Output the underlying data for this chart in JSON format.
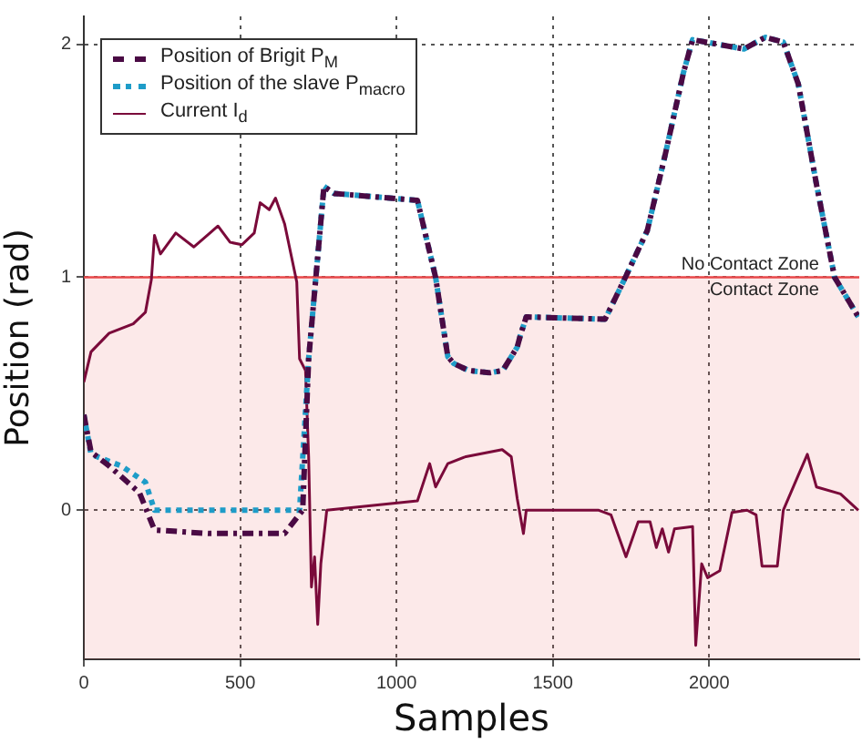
{
  "chart_data": {
    "type": "line",
    "xlabel": "Samples",
    "ylabel": "Position (rad)",
    "xlim": [
      0,
      2480
    ],
    "ylim": [
      -0.64,
      2.12
    ],
    "xticks": [
      0,
      500,
      1000,
      1500,
      2000
    ],
    "yticks": [
      0,
      1,
      2
    ],
    "grid": true,
    "legend": "top left",
    "marker": "none",
    "ref_lines": [
      {
        "axis": "y",
        "value": 1,
        "label": "No Contact Zone",
        "color": "#e8484a"
      }
    ],
    "bands": [
      {
        "axis": "y",
        "from": -0.64,
        "to": 1,
        "label": "Contact Zone",
        "color": "#e8484a"
      }
    ],
    "series": [
      {
        "name": "Position of Brigit P$_{M}$",
        "color": "#4a0a44",
        "line_style": "dashed",
        "x": [
          0,
          23,
          81,
          178,
          226,
          400,
          642,
          700,
          719,
          768,
          800,
          1067,
          1125,
          1164,
          1183,
          1230,
          1299,
          1340,
          1386,
          1396,
          1415,
          1667,
          1725,
          1802,
          1860,
          1918,
          1947,
          2111,
          2179,
          2237,
          2285,
          2343,
          2401,
          2477
        ],
        "values": [
          0.41,
          0.25,
          0.19,
          0.075,
          -0.085,
          -0.1,
          -0.1,
          0.0,
          0.65,
          1.39,
          1.36,
          1.33,
          1.0,
          0.66,
          0.63,
          0.6,
          0.59,
          0.6,
          0.7,
          0.75,
          0.83,
          0.82,
          0.98,
          1.2,
          1.53,
          1.88,
          2.02,
          1.98,
          2.03,
          2.01,
          1.83,
          1.4,
          1.0,
          0.83
        ]
      },
      {
        "name": "Position of the slave P$_{macro}$",
        "color": "#1e9cc8",
        "line_style": "dotted",
        "x": [
          0,
          23,
          120,
          197,
          226,
          400,
          690,
          719,
          768,
          800,
          1067,
          1125,
          1164,
          1183,
          1230,
          1299,
          1340,
          1386,
          1396,
          1415,
          1667,
          1725,
          1802,
          1860,
          1918,
          1947,
          2111,
          2179,
          2237,
          2285,
          2343,
          2401,
          2477
        ],
        "values": [
          0.41,
          0.24,
          0.19,
          0.12,
          0.0,
          0.0,
          0.0,
          0.65,
          1.39,
          1.36,
          1.33,
          1.0,
          0.66,
          0.63,
          0.6,
          0.59,
          0.6,
          0.7,
          0.75,
          0.83,
          0.82,
          0.98,
          1.2,
          1.53,
          1.88,
          2.02,
          1.98,
          2.03,
          2.01,
          1.83,
          1.4,
          1.0,
          0.83
        ]
      },
      {
        "name": "Current I$_{d}$",
        "color": "#7a0a3a",
        "line_style": "solid",
        "x": [
          0,
          23,
          81,
          158,
          197,
          216,
          226,
          245,
          294,
          352,
          429,
          468,
          506,
          545,
          564,
          593,
          613,
          642,
          681,
          690,
          709,
          719,
          728,
          738,
          748,
          758,
          777,
          1067,
          1106,
          1125,
          1164,
          1222,
          1338,
          1367,
          1386,
          1406,
          1415,
          1647,
          1686,
          1734,
          1773,
          1811,
          1831,
          1850,
          1870,
          1889,
          1947,
          1957,
          1976,
          1995,
          2034,
          2073,
          2121,
          2150,
          2169,
          2218,
          2237,
          2285,
          2314,
          2343,
          2420,
          2477
        ],
        "values": [
          0.55,
          0.68,
          0.76,
          0.8,
          0.85,
          0.99,
          1.18,
          1.1,
          1.19,
          1.13,
          1.22,
          1.15,
          1.14,
          1.19,
          1.32,
          1.29,
          1.34,
          1.23,
          0.98,
          0.65,
          0.6,
          0.23,
          -0.33,
          -0.2,
          -0.49,
          -0.23,
          0.0,
          0.04,
          0.2,
          0.1,
          0.2,
          0.23,
          0.26,
          0.23,
          0.05,
          -0.1,
          0.0,
          0.0,
          -0.02,
          -0.2,
          -0.05,
          -0.05,
          -0.16,
          -0.08,
          -0.18,
          -0.08,
          -0.07,
          -0.58,
          -0.23,
          -0.29,
          -0.26,
          -0.01,
          0.0,
          -0.02,
          -0.24,
          -0.24,
          0.0,
          0.15,
          0.24,
          0.1,
          0.07,
          0.0
        ]
      }
    ]
  }
}
